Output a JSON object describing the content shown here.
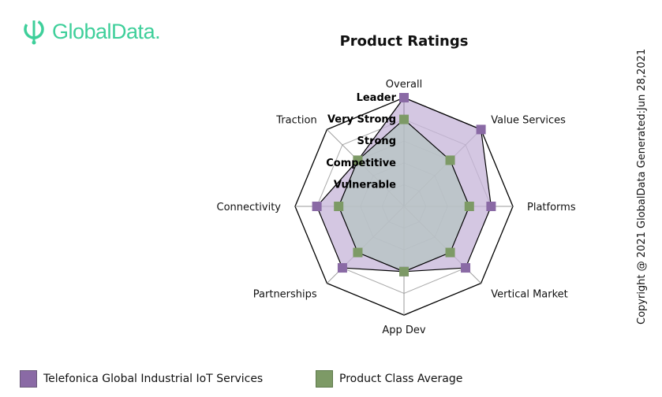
{
  "brand": {
    "name": "GlobalData."
  },
  "copyright": "Copyright @ 2021 GlobalData Generated:Jun 28,2021",
  "chart_data": {
    "type": "radar",
    "title": "Product Ratings",
    "axes": [
      "Overall",
      "Value Services",
      "Platforms",
      "Vertical Market",
      "App Dev",
      "Partnerships",
      "Connectivity",
      "Traction"
    ],
    "scale_labels": [
      "Vulnerable",
      "Competitive",
      "Strong",
      "Very Strong",
      "Leader"
    ],
    "scale_max": 5,
    "grid": true,
    "legend_position": "bottom",
    "series": [
      {
        "name": "Telefonica Global Industrial IoT Services",
        "color": "#8a6aa5",
        "fill": "#c6b4d8",
        "values": [
          5,
          5,
          4,
          4,
          3,
          4,
          4,
          3
        ]
      },
      {
        "name": "Product Class Average",
        "color": "#7d9a66",
        "fill": "#b5c4c2",
        "values": [
          4,
          3,
          3,
          3,
          3,
          3,
          3,
          3
        ]
      }
    ]
  }
}
